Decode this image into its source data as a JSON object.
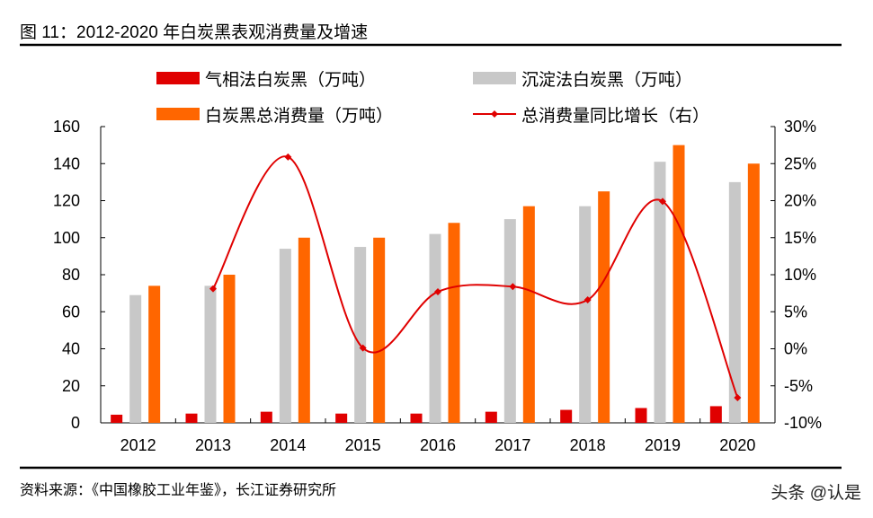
{
  "title": "图 11：2012-2020 年白炭黑表观消费量及增速",
  "source": "资料来源：《中国橡胶工业年鉴》，长江证券研究所",
  "watermark": "头条 @认是",
  "chart_data": {
    "type": "bar",
    "categories": [
      "2012",
      "2013",
      "2014",
      "2015",
      "2016",
      "2017",
      "2018",
      "2019",
      "2020"
    ],
    "series": [
      {
        "name": "气相法白炭黑（万吨）",
        "kind": "bar",
        "axis": "left",
        "color": "#E00000",
        "values": [
          4.4,
          5,
          6,
          5,
          5,
          6,
          7,
          8,
          9
        ]
      },
      {
        "name": "沉淀法白炭黑（万吨）",
        "kind": "bar",
        "axis": "left",
        "color": "#C8C8C8",
        "values": [
          69,
          74,
          94,
          95,
          102,
          110,
          117,
          141,
          130
        ]
      },
      {
        "name": "白炭黑总消费量（万吨）",
        "kind": "bar",
        "axis": "left",
        "color": "#FF6600",
        "values": [
          74,
          80,
          100,
          100,
          108,
          117,
          125,
          150,
          140
        ]
      },
      {
        "name": "总消费量同比增长（右）",
        "kind": "line",
        "axis": "right",
        "color": "#E00000",
        "values": [
          null,
          8.1,
          25.9,
          0.1,
          7.7,
          8.4,
          6.6,
          19.9,
          -6.6
        ]
      }
    ],
    "ylim": [
      0,
      160
    ],
    "yticks": [
      "0",
      "20",
      "40",
      "60",
      "80",
      "100",
      "120",
      "140",
      "160"
    ],
    "y2lim": [
      -10,
      30
    ],
    "y2ticks": [
      "-10%",
      "-5%",
      "0%",
      "5%",
      "10%",
      "15%",
      "20%",
      "25%",
      "30%"
    ],
    "legend": "top",
    "grid": false
  }
}
